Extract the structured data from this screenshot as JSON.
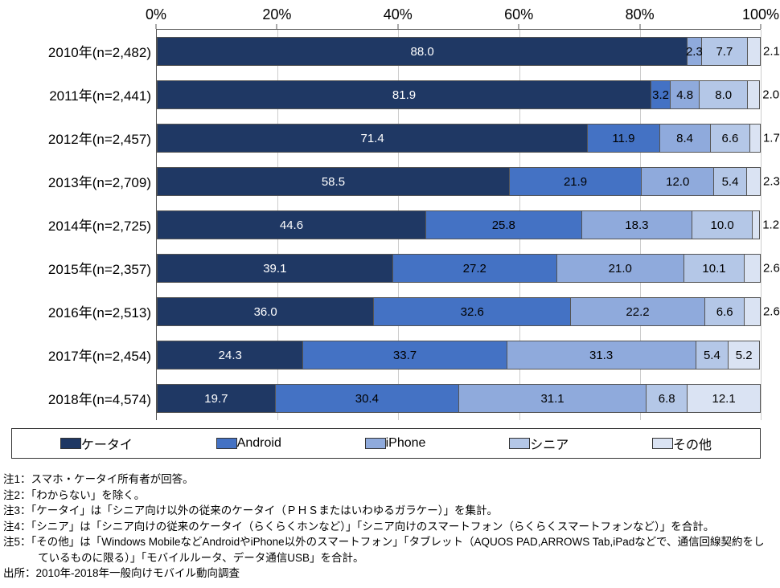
{
  "chart": {
    "type": "stacked-bar-horizontal",
    "x_axis": {
      "min": 0,
      "max": 100,
      "unit": "%",
      "ticks": [
        0,
        20,
        40,
        60,
        80,
        100
      ],
      "tick_labels": [
        "0%",
        "20%",
        "40%",
        "60%",
        "80%",
        "100%"
      ],
      "fontsize": 18
    },
    "colors": {
      "series": [
        "#1f3864",
        "#4472c4",
        "#8faadc",
        "#b4c7e7",
        "#dae3f3"
      ],
      "grid": "#cccccc",
      "axis": "#555555",
      "background": "#ffffff",
      "text": "#000000"
    },
    "series_labels": [
      "ケータイ",
      "Android",
      "iPhone",
      "シニア",
      "その他"
    ],
    "rows": [
      {
        "label": "2010年(n=2,482)",
        "values": [
          88.0,
          0.0,
          2.3,
          7.7,
          2.1
        ],
        "value_labels": [
          "88.0",
          "",
          "2.3",
          "7.7",
          "2.1"
        ],
        "outside_last": true
      },
      {
        "label": "2011年(n=2,441)",
        "values": [
          81.9,
          3.2,
          4.8,
          8.0,
          2.0
        ],
        "value_labels": [
          "81.9",
          "3.2",
          "4.8",
          "8.0",
          "2.0"
        ],
        "outside_last": true
      },
      {
        "label": "2012年(n=2,457)",
        "values": [
          71.4,
          11.9,
          8.4,
          6.6,
          1.7
        ],
        "value_labels": [
          "71.4",
          "11.9",
          "8.4",
          "6.6",
          "1.7"
        ],
        "outside_last": true
      },
      {
        "label": "2013年(n=2,709)",
        "values": [
          58.5,
          21.9,
          12.0,
          5.4,
          2.3
        ],
        "value_labels": [
          "58.5",
          "21.9",
          "12.0",
          "5.4",
          "2.3"
        ],
        "outside_last": true
      },
      {
        "label": "2014年(n=2,725)",
        "values": [
          44.6,
          25.8,
          18.3,
          10.0,
          1.2
        ],
        "value_labels": [
          "44.6",
          "25.8",
          "18.3",
          "10.0",
          "1.2"
        ],
        "outside_last": true
      },
      {
        "label": "2015年(n=2,357)",
        "values": [
          39.1,
          27.2,
          21.0,
          10.1,
          2.6
        ],
        "value_labels": [
          "39.1",
          "27.2",
          "21.0",
          "10.1",
          "2.6"
        ],
        "outside_last": true
      },
      {
        "label": "2016年(n=2,513)",
        "values": [
          36.0,
          32.6,
          22.2,
          6.6,
          2.6
        ],
        "value_labels": [
          "36.0",
          "32.6",
          "22.2",
          "6.6",
          "2.6"
        ],
        "outside_last": true
      },
      {
        "label": "2017年(n=2,454)",
        "values": [
          24.3,
          33.7,
          31.3,
          5.4,
          5.2
        ],
        "value_labels": [
          "24.3",
          "33.7",
          "31.3",
          "5.4",
          "5.2"
        ],
        "outside_last": false
      },
      {
        "label": "2018年(n=4,574)",
        "values": [
          19.7,
          30.4,
          31.1,
          6.8,
          12.1
        ],
        "value_labels": [
          "19.7",
          "30.4",
          "31.1",
          "6.8",
          "12.1"
        ],
        "outside_last": false
      }
    ],
    "legend": {
      "items": [
        "ケータイ",
        "Android",
        "iPhone",
        "シニア",
        "その他"
      ],
      "swatch_colors": [
        "#1f3864",
        "#4472c4",
        "#8faadc",
        "#b4c7e7",
        "#dae3f3"
      ],
      "fontsize": 16
    }
  },
  "notes": {
    "lines": [
      "注1：スマホ・ケータイ所有者が回答。",
      "注2：「わからない」を除く。",
      "注3：「ケータイ」は「シニア向け以外の従来のケータイ（ＰＨＳまたはいわゆるガラケー）」を集計。",
      "注4：「シニア」は「シニア向けの従来のケータイ（らくらくホンなど）」「シニア向けのスマートフォン（らくらくスマートフォンなど）」を合計。",
      "注5：「その他」は「Windows MobileなどAndroidやiPhone以外のスマートフォン」「タブレット（AQUOS PAD,ARROWS Tab,iPadなどで、通信回線契約をしているものに限る）」「モバイルルータ、データ通信USB」を合計。",
      "出所：2010年-2018年一般向けモバイル動向調査"
    ],
    "fontsize": 13.5
  }
}
